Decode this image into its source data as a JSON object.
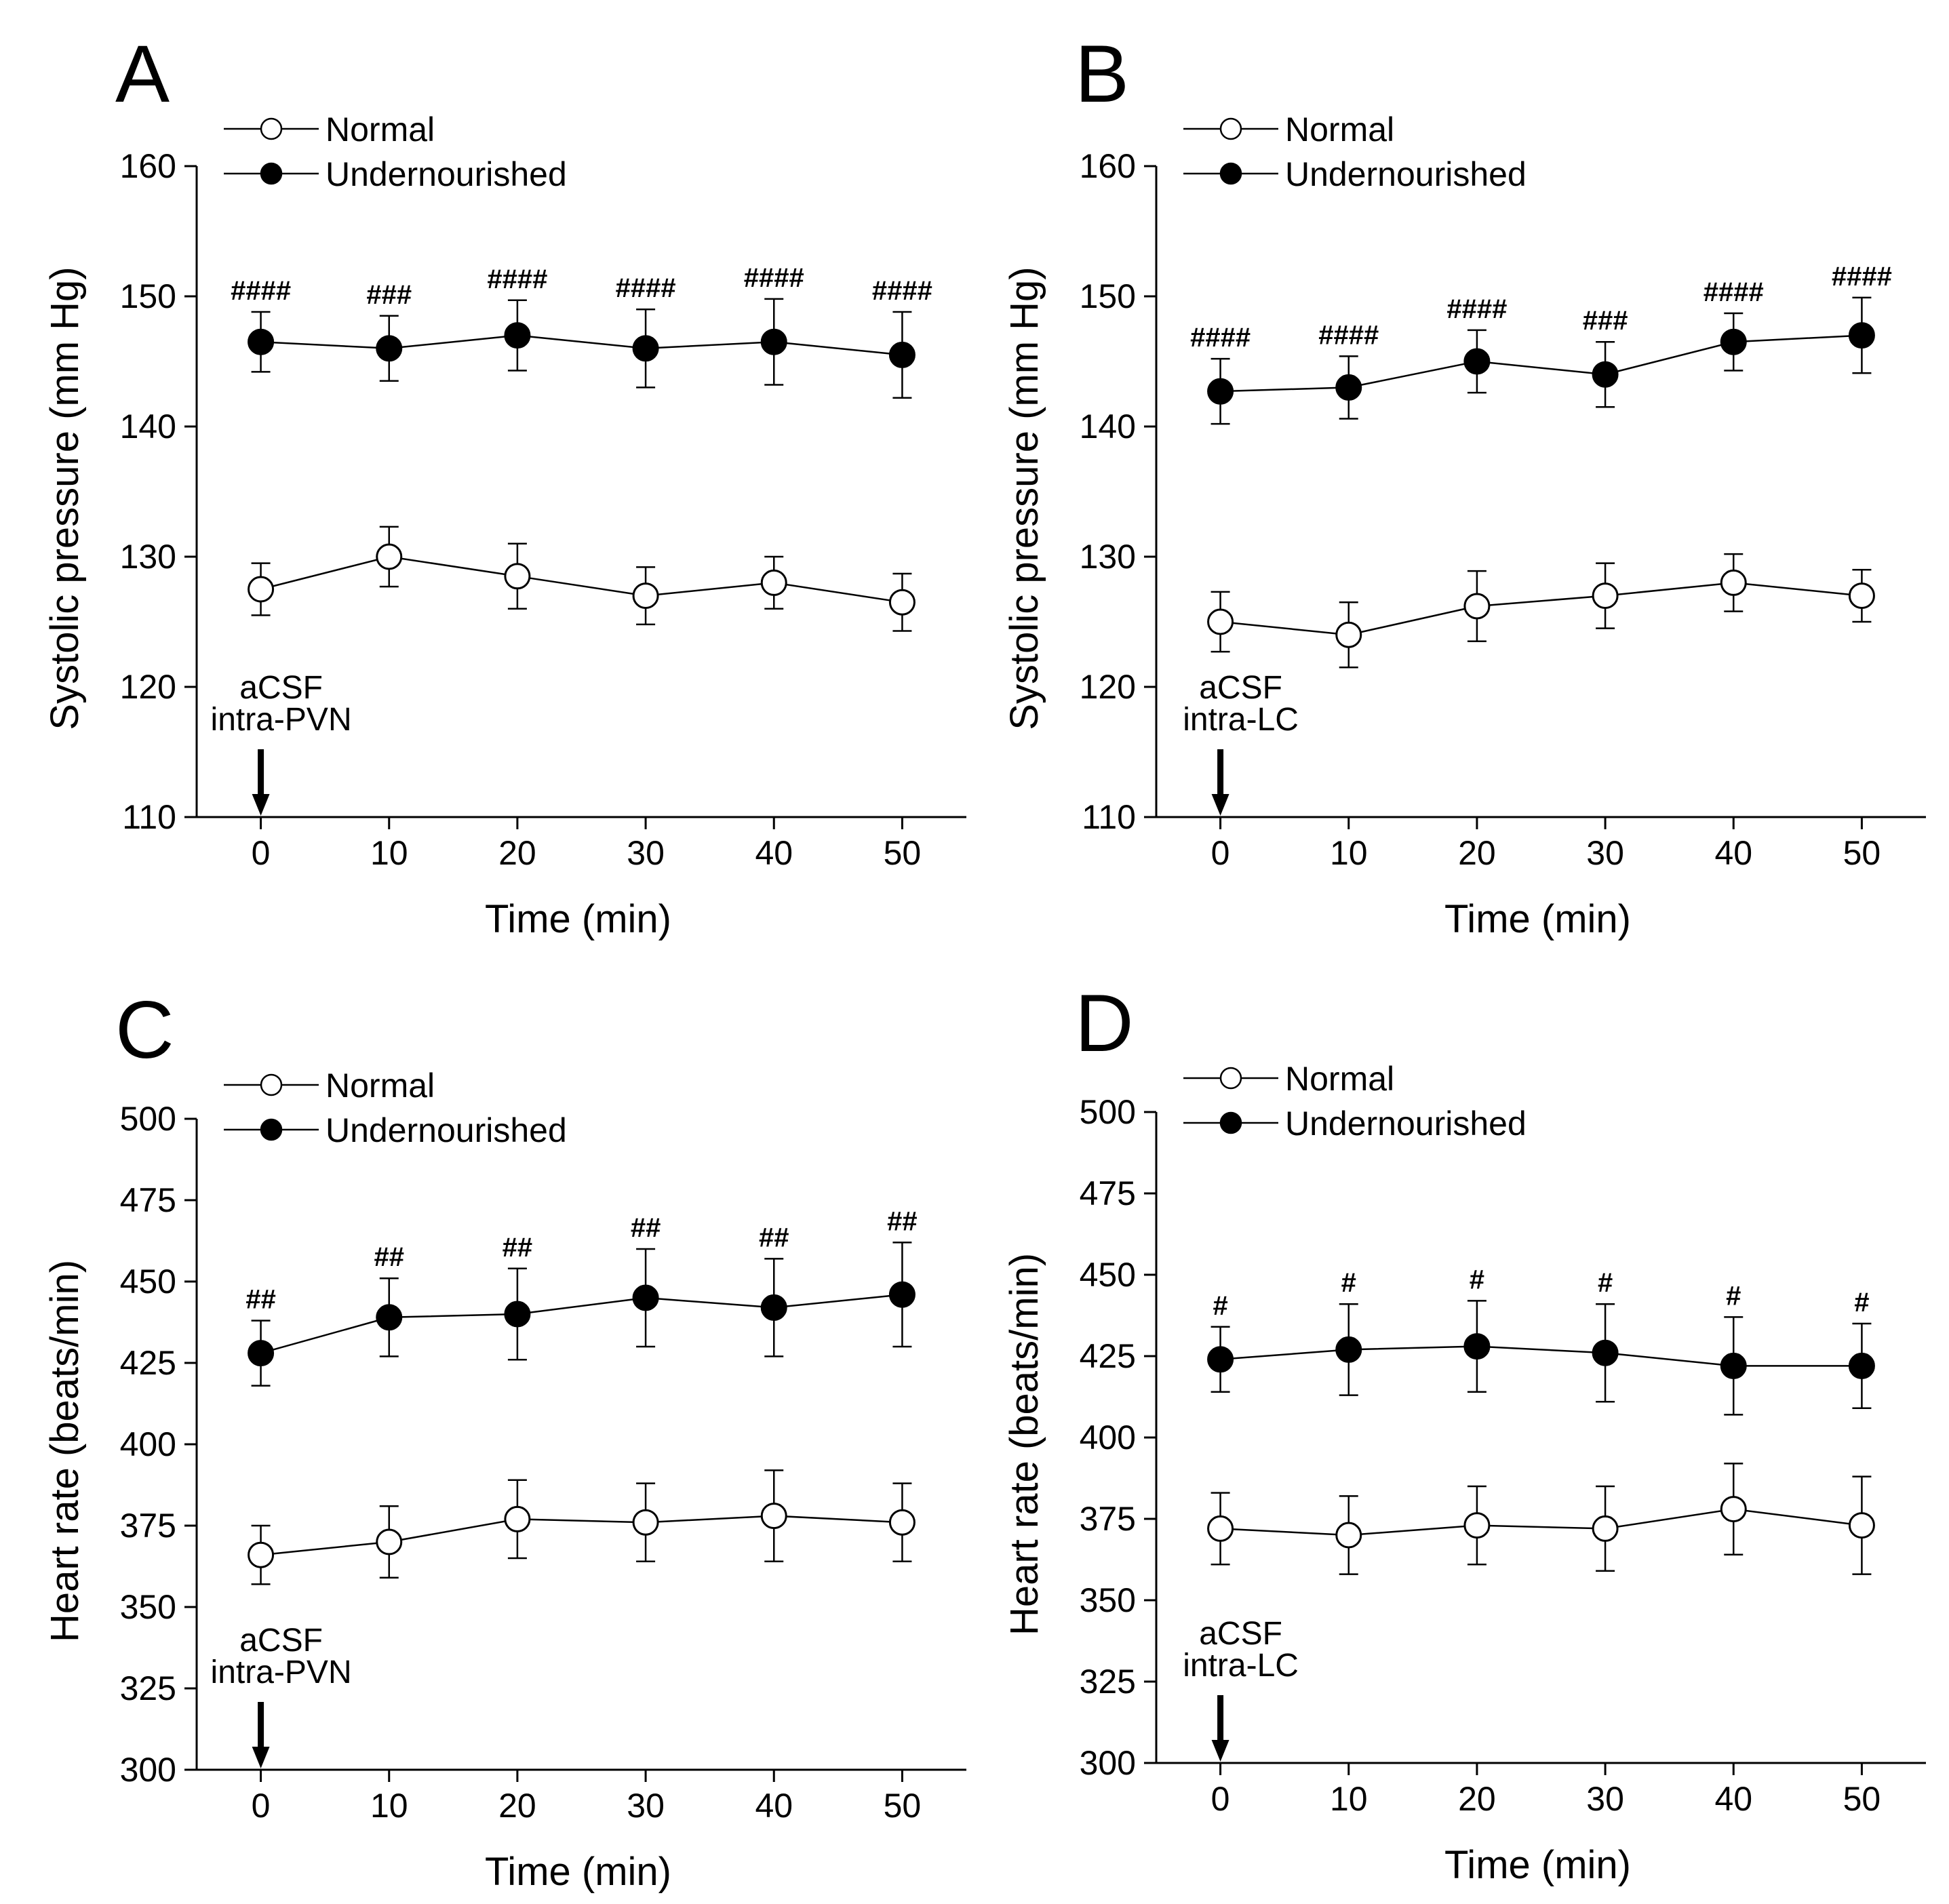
{
  "chart_data": [
    {
      "panel": "A",
      "type": "line",
      "xlabel": "Time (min)",
      "ylabel": "Systolic pressure (mm Hg)",
      "x": [
        0,
        10,
        20,
        30,
        40,
        50
      ],
      "xlim": [
        -5,
        55
      ],
      "ylim": [
        110,
        160
      ],
      "xticks": [
        "0",
        "10",
        "20",
        "30",
        "40",
        "50"
      ],
      "yticks": [
        "110",
        "120",
        "130",
        "140",
        "150",
        "160"
      ],
      "legend": [
        "Normal",
        "Undernourished"
      ],
      "legend_position": "top-left",
      "annotation": [
        "aCSF",
        "intra-PVN"
      ],
      "series": [
        {
          "name": "Normal",
          "marker": "open-circle",
          "values": [
            127.5,
            130,
            128.5,
            127,
            128,
            126.5
          ],
          "errors": [
            2,
            2.3,
            2.5,
            2.2,
            2,
            2.2
          ]
        },
        {
          "name": "Undernourished",
          "marker": "filled-circle",
          "values": [
            146.5,
            146,
            147,
            146,
            146.5,
            145.5
          ],
          "errors": [
            2.3,
            2.5,
            2.7,
            3,
            3.3,
            3.3
          ],
          "significance": [
            "####",
            "###",
            "####",
            "####",
            "####",
            "####"
          ]
        }
      ]
    },
    {
      "panel": "B",
      "type": "line",
      "xlabel": "Time (min)",
      "ylabel": "Systolic pressure (mm Hg)",
      "x": [
        0,
        10,
        20,
        30,
        40,
        50
      ],
      "xlim": [
        -5,
        55
      ],
      "ylim": [
        110,
        160
      ],
      "xticks": [
        "0",
        "10",
        "20",
        "30",
        "40",
        "50"
      ],
      "yticks": [
        "110",
        "120",
        "130",
        "140",
        "150",
        "160"
      ],
      "legend": [
        "Normal",
        "Undernourished"
      ],
      "legend_position": "top-left",
      "annotation": [
        "aCSF",
        "intra-LC"
      ],
      "series": [
        {
          "name": "Normal",
          "marker": "open-circle",
          "values": [
            125,
            124,
            126.2,
            127,
            128,
            127
          ],
          "errors": [
            2.3,
            2.5,
            2.7,
            2.5,
            2.2,
            2
          ]
        },
        {
          "name": "Undernourished",
          "marker": "filled-circle",
          "values": [
            142.7,
            143,
            145,
            144,
            146.5,
            147
          ],
          "errors": [
            2.5,
            2.4,
            2.4,
            2.5,
            2.2,
            2.9
          ],
          "significance": [
            "####",
            "####",
            "####",
            "###",
            "####",
            "####"
          ]
        }
      ]
    },
    {
      "panel": "C",
      "type": "line",
      "xlabel": "Time (min)",
      "ylabel": "Heart rate (beats/min)",
      "x": [
        0,
        10,
        20,
        30,
        40,
        50
      ],
      "xlim": [
        -5,
        55
      ],
      "ylim": [
        300,
        500
      ],
      "xticks": [
        "0",
        "10",
        "20",
        "30",
        "40",
        "50"
      ],
      "yticks": [
        "300",
        "325",
        "350",
        "375",
        "400",
        "425",
        "450",
        "475",
        "500"
      ],
      "legend": [
        "Normal",
        "Undernourished"
      ],
      "legend_position": "top-left",
      "annotation": [
        "aCSF",
        "intra-PVN"
      ],
      "series": [
        {
          "name": "Normal",
          "marker": "open-circle",
          "values": [
            366,
            370,
            377,
            376,
            378,
            376
          ],
          "errors": [
            9,
            11,
            12,
            12,
            14,
            12
          ]
        },
        {
          "name": "Undernourished",
          "marker": "filled-circle",
          "values": [
            428,
            439,
            440,
            445,
            442,
            446
          ],
          "errors": [
            10,
            12,
            14,
            15,
            15,
            16
          ],
          "significance": [
            "##",
            "##",
            "##",
            "##",
            "##",
            "##"
          ]
        }
      ]
    },
    {
      "panel": "D",
      "type": "line",
      "xlabel": "Time (min)",
      "ylabel": "Heart rate (beats/min)",
      "x": [
        0,
        10,
        20,
        30,
        40,
        50
      ],
      "xlim": [
        -5,
        55
      ],
      "ylim": [
        300,
        500
      ],
      "xticks": [
        "0",
        "10",
        "20",
        "30",
        "40",
        "50"
      ],
      "yticks": [
        "300",
        "325",
        "350",
        "375",
        "400",
        "425",
        "450",
        "475",
        "500"
      ],
      "legend": [
        "Normal",
        "Undernourished"
      ],
      "legend_position": "top-left",
      "annotation": [
        "aCSF",
        "intra-LC"
      ],
      "series": [
        {
          "name": "Normal",
          "marker": "open-circle",
          "values": [
            372,
            370,
            373,
            372,
            378,
            373
          ],
          "errors": [
            11,
            12,
            12,
            13,
            14,
            15
          ]
        },
        {
          "name": "Undernourished",
          "marker": "filled-circle",
          "values": [
            424,
            427,
            428,
            426,
            422,
            422
          ],
          "errors": [
            10,
            14,
            14,
            15,
            15,
            13
          ],
          "significance": [
            "#",
            "#",
            "#",
            "#",
            "#",
            "#"
          ]
        }
      ]
    }
  ]
}
